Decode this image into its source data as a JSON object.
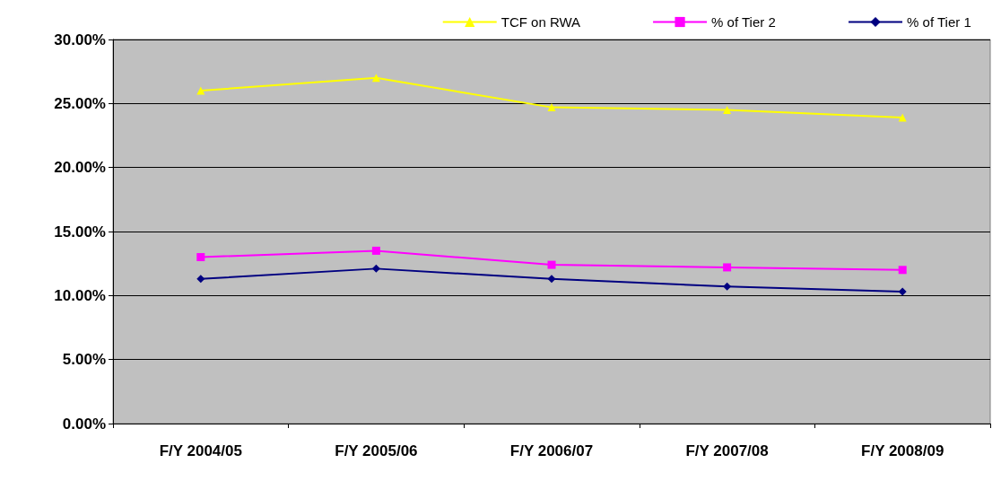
{
  "chart_data": {
    "type": "line",
    "categories": [
      "F/Y 2004/05",
      "F/Y 2005/06",
      "F/Y 2006/07",
      "F/Y 2007/08",
      "F/Y 2008/09"
    ],
    "series": [
      {
        "name": "TCF on RWA",
        "color": "#ffff00",
        "marker": "triangle",
        "values": [
          26.0,
          27.0,
          24.7,
          24.5,
          23.9
        ]
      },
      {
        "name": "% of Tier 2",
        "color": "#ff00ff",
        "marker": "square",
        "values": [
          13.0,
          13.5,
          12.4,
          12.2,
          12.0
        ]
      },
      {
        "name": "% of Tier 1",
        "color": "#000080",
        "marker": "diamond",
        "values": [
          11.3,
          12.1,
          11.3,
          10.7,
          10.3
        ]
      }
    ],
    "ylim": [
      0,
      30
    ],
    "yticks": [
      {
        "value": 0,
        "label": "0.00%"
      },
      {
        "value": 5,
        "label": "5.00%"
      },
      {
        "value": 10,
        "label": "10.00%"
      },
      {
        "value": 15,
        "label": "15.00%"
      },
      {
        "value": 20,
        "label": "20.00%"
      },
      {
        "value": 25,
        "label": "25.00%"
      },
      {
        "value": 30,
        "label": "30.00%"
      }
    ],
    "grid": "y",
    "legend": "top right",
    "line_style": "solid"
  }
}
